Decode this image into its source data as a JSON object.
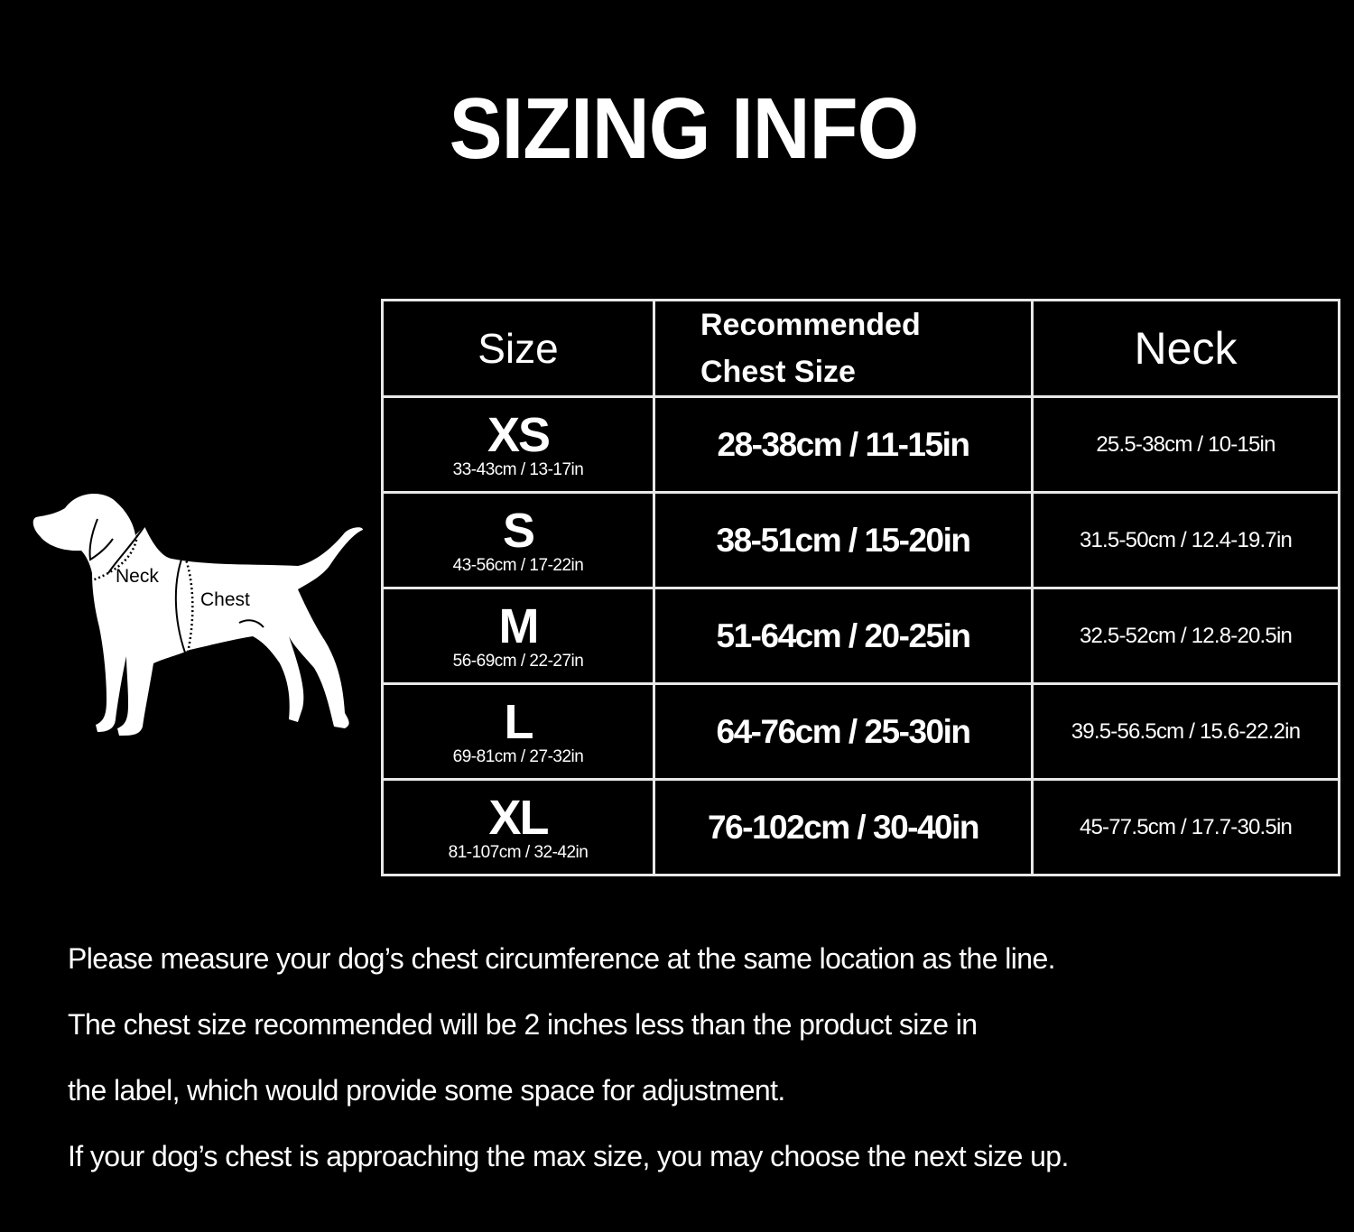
{
  "title": "SIZING INFO",
  "diagram": {
    "neck_label": "Neck",
    "chest_label": "Chest",
    "icon": "dog-silhouette"
  },
  "table": {
    "headers": {
      "size": "Size",
      "chest_line1": "Recommended",
      "chest_line2": "Chest Size",
      "neck": "Neck"
    },
    "rows": [
      {
        "size": "XS",
        "product": "33-43cm / 13-17in",
        "chest": "28-38cm / 11-15in",
        "neck": "25.5-38cm / 10-15in"
      },
      {
        "size": "S",
        "product": "43-56cm / 17-22in",
        "chest": "38-51cm / 15-20in",
        "neck": "31.5-50cm / 12.4-19.7in"
      },
      {
        "size": "M",
        "product": "56-69cm / 22-27in",
        "chest": "51-64cm / 20-25in",
        "neck": "32.5-52cm / 12.8-20.5in"
      },
      {
        "size": "L",
        "product": "69-81cm / 27-32in",
        "chest": "64-76cm / 25-30in",
        "neck": "39.5-56.5cm / 15.6-22.2in"
      },
      {
        "size": "XL",
        "product": "81-107cm / 32-42in",
        "chest": "76-102cm / 30-40in",
        "neck": "45-77.5cm / 17.7-30.5in"
      }
    ]
  },
  "notes": [
    "Please measure your dog’s chest circumference at the same location as the line.",
    "The chest size recommended will be 2 inches less than the product size in",
    "the label, which would provide some space for adjustment.",
    "If your dog’s chest is approaching the max size, you may choose the next size up."
  ],
  "colors": {
    "background": "#000000",
    "text": "#ffffff",
    "border": "#e8e8e8"
  }
}
